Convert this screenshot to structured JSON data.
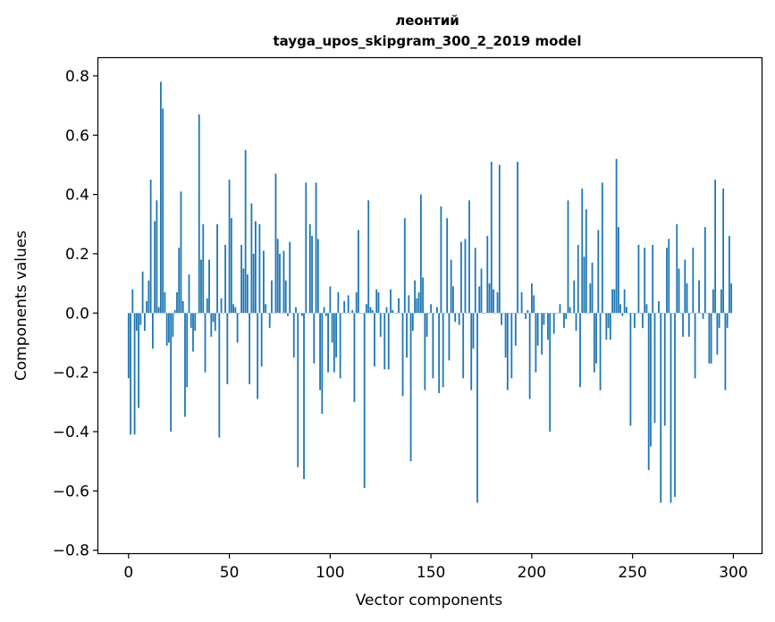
{
  "chart_data": {
    "type": "bar",
    "title_line1": "леонтий",
    "title_line2": "tayga_upos_skipgram_300_2_2019 model",
    "xlabel": "Vector components",
    "ylabel": "Components values",
    "xlim": [
      -15,
      314
    ],
    "ylim": [
      -0.81,
      0.86
    ],
    "xticks": [
      0,
      50,
      100,
      150,
      200,
      250,
      300
    ],
    "yticks": [
      -0.8,
      -0.6,
      -0.4,
      -0.2,
      0.0,
      0.2,
      0.4,
      0.6,
      0.8
    ],
    "ytick_labels": [
      "−0.8",
      "−0.6",
      "−0.4",
      "−0.2",
      "0.0",
      "0.2",
      "0.4",
      "0.6",
      "0.8"
    ],
    "bar_color": "#1f77b4",
    "grid": false,
    "values": [
      -0.22,
      -0.41,
      0.08,
      -0.41,
      -0.06,
      -0.32,
      -0.04,
      0.14,
      -0.06,
      0.04,
      0.11,
      0.45,
      -0.12,
      0.31,
      0.38,
      0.02,
      0.78,
      0.69,
      0.07,
      -0.11,
      -0.1,
      -0.4,
      -0.08,
      0.01,
      0.07,
      0.22,
      0.41,
      0.04,
      -0.35,
      -0.25,
      0.13,
      -0.05,
      -0.13,
      -0.06,
      0.0,
      0.67,
      0.18,
      0.3,
      -0.2,
      0.05,
      0.18,
      -0.08,
      -0.03,
      -0.06,
      0.3,
      -0.42,
      0.05,
      0.0,
      0.23,
      -0.24,
      0.45,
      0.32,
      0.03,
      0.02,
      -0.1,
      0.0,
      0.23,
      0.15,
      0.55,
      0.13,
      -0.24,
      0.37,
      0.2,
      0.31,
      -0.29,
      0.3,
      -0.18,
      0.21,
      0.03,
      0.0,
      -0.05,
      0.11,
      0.0,
      0.47,
      0.25,
      0.2,
      0.0,
      0.21,
      0.11,
      -0.01,
      0.24,
      0.0,
      -0.15,
      0.02,
      -0.52,
      0.0,
      -0.01,
      -0.56,
      0.44,
      0.0,
      0.3,
      0.26,
      -0.17,
      0.44,
      0.25,
      -0.26,
      -0.34,
      0.02,
      -0.01,
      -0.2,
      0.09,
      -0.1,
      -0.2,
      -0.15,
      0.07,
      -0.22,
      0.0,
      0.04,
      0.0,
      0.06,
      0.0,
      0.01,
      -0.3,
      0.07,
      0.28,
      0.0,
      0.0,
      -0.59,
      0.03,
      0.38,
      0.02,
      0.01,
      -0.18,
      0.08,
      0.07,
      -0.08,
      0.0,
      -0.19,
      0.02,
      -0.19,
      0.08,
      0.01,
      0.0,
      0.0,
      0.05,
      0.0,
      -0.28,
      0.32,
      -0.15,
      0.06,
      -0.5,
      -0.06,
      0.11,
      0.05,
      0.07,
      0.4,
      0.12,
      -0.26,
      -0.08,
      0.0,
      0.03,
      -0.22,
      0.0,
      0.02,
      -0.27,
      0.36,
      -0.25,
      0.0,
      0.32,
      -0.16,
      0.18,
      0.09,
      -0.03,
      0.0,
      -0.04,
      0.24,
      -0.22,
      0.25,
      0.0,
      0.38,
      -0.26,
      -0.12,
      0.22,
      -0.64,
      0.09,
      0.15,
      0.0,
      0.0,
      0.26,
      0.1,
      0.51,
      0.08,
      0.0,
      0.07,
      0.5,
      -0.04,
      0.0,
      -0.15,
      -0.26,
      0.0,
      -0.22,
      0.0,
      -0.11,
      0.51,
      0.0,
      0.07,
      0.0,
      -0.02,
      0.01,
      -0.29,
      0.1,
      0.06,
      -0.2,
      -0.11,
      0.0,
      -0.14,
      -0.04,
      0.0,
      -0.09,
      -0.4,
      0.0,
      -0.07,
      0.0,
      0.0,
      0.03,
      0.0,
      -0.05,
      -0.02,
      0.38,
      0.02,
      0.0,
      0.11,
      -0.06,
      0.23,
      -0.25,
      0.42,
      0.19,
      0.35,
      0.0,
      0.1,
      0.17,
      -0.2,
      -0.17,
      0.28,
      -0.26,
      0.44,
      0.0,
      -0.09,
      -0.05,
      -0.09,
      0.08,
      0.08,
      0.52,
      0.29,
      0.03,
      -0.01,
      0.08,
      0.02,
      0.0,
      -0.38,
      0.0,
      -0.05,
      0.0,
      0.23,
      0.0,
      -0.05,
      0.22,
      0.03,
      -0.53,
      -0.45,
      0.23,
      -0.37,
      0.0,
      0.04,
      -0.64,
      0.0,
      -0.38,
      0.22,
      0.25,
      -0.64,
      0.0,
      -0.62,
      0.3,
      0.15,
      0.0,
      -0.08,
      0.18,
      0.1,
      -0.08,
      0.0,
      0.22,
      -0.22,
      0.0,
      0.11,
      0.0,
      -0.02,
      0.29,
      0.0,
      -0.17,
      -0.17,
      0.08,
      0.45,
      -0.14,
      -0.05,
      0.08,
      0.42,
      -0.26,
      -0.05,
      0.26,
      0.1
    ]
  }
}
